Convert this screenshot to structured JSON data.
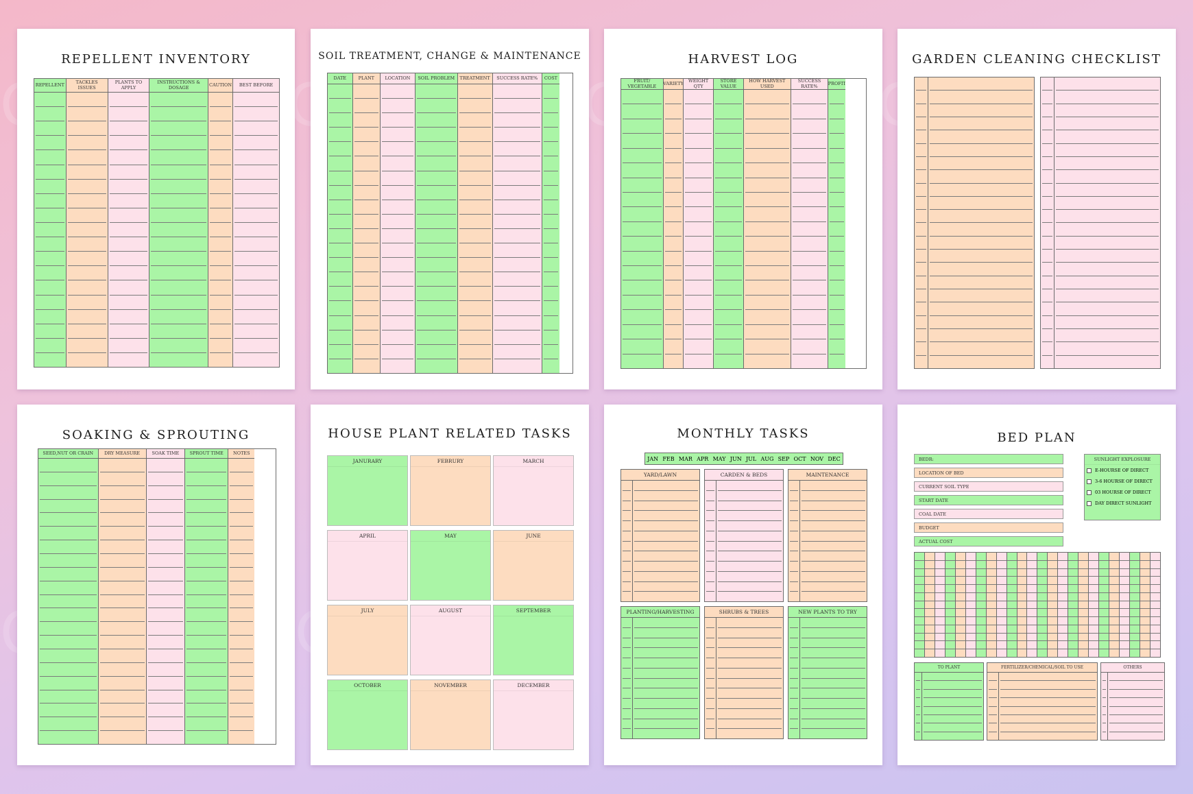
{
  "watermark": "CraftNest",
  "pages": {
    "repellent": {
      "title": "REPELLENT INVENTORY",
      "columns": [
        "REPELLENT",
        "TACKLES ISSUES",
        "PLANTS TO APPLY",
        "INSTRUCTIONS & DOSAGE",
        "CAUTION",
        "BEST BEFORE"
      ]
    },
    "soil": {
      "title": "SOIL TREATMENT, CHANGE & MAINTENANCE",
      "columns": [
        "DATE",
        "PLANT",
        "LOCATION",
        "SOIL PROBLEM",
        "TREATMENT",
        "SUCCESS RATE%",
        "COST"
      ]
    },
    "harvest": {
      "title": "HARVEST LOG",
      "columns": [
        "FRUIT/ VEGETABLE",
        "VARIETY",
        "WEIGHT QTY",
        "STORE VALUE",
        "HOW HARVEST USED",
        "SUCCESS RATE%",
        "PROFIT"
      ]
    },
    "cleaning": {
      "title": "GARDEN CLEANING CHECKLIST"
    },
    "soaking": {
      "title": "SOAKING & SPROUTING",
      "columns": [
        "SEED,NUT OR CRAIN",
        "DRY MEASURE",
        "SOAK TIME",
        "SPROUT TIME",
        "NOTES"
      ]
    },
    "houseplant": {
      "title": "HOUSE PLANT RELATED TASKS",
      "months": [
        "JANURARY",
        "FEBRURY",
        "MARCH",
        "APRIL",
        "MAY",
        "JUNE",
        "JULY",
        "AUGUST",
        "SEPTEMBER",
        "OCTOBER",
        "NOVEMBER",
        "DECEMBER"
      ]
    },
    "monthly": {
      "title": "MONTHLY TASKS",
      "months": [
        "JAN",
        "FEB",
        "MAR",
        "APR",
        "MAY",
        "JUN",
        "JUL",
        "AUG",
        "SEP",
        "OCT",
        "NOV",
        "DEC"
      ],
      "sections_top": [
        "YARD/LAWN",
        "CARDEN & BEDS",
        "MAINTENANCE"
      ],
      "sections_bottom": [
        "PLANTING/HARVESTING",
        "SHRUBS & TREES",
        "NEW PLANTS TO TRY"
      ]
    },
    "bedplan": {
      "title": "BED PLAN",
      "fields": [
        "BEDR:",
        "LOCATION OF BED",
        "CURRENT SOIL TYPE",
        "START DATE",
        "COAL DATE",
        "BUDGET",
        "ACTUAL COST"
      ],
      "sunlight_title": "SUNLIGHT EXPLOSURE",
      "sunlight_options": [
        "E-HOURSE OF DIRECT",
        "3-6 HOURSE OF DIRECT",
        "03 HOURSE OF DIRECT",
        "DAY DIRECT SUNLIGHT"
      ],
      "bottom_sections": [
        "TO PLANT",
        "FERTILIZER/CHEMICAL/SOIL TO USE",
        "OTHERS"
      ]
    }
  },
  "colors": {
    "green": "#aaf5a6",
    "peach": "#fddcc0",
    "pink": "#fde1ea"
  }
}
